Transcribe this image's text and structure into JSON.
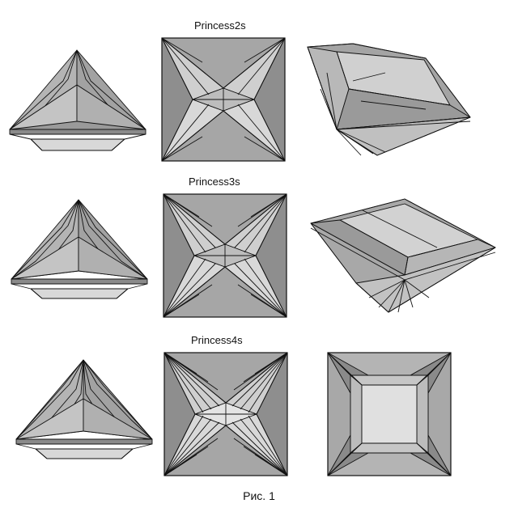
{
  "rows": [
    {
      "title": "Princess2s"
    },
    {
      "title": "Princess3s"
    },
    {
      "title": "Princess4s"
    }
  ],
  "caption": "Рис. 1",
  "colors": {
    "dark": "#8e8e8e",
    "mid": "#a8a8a8",
    "light": "#cfcfcf",
    "lighter": "#dedede",
    "outline": "#111111"
  }
}
